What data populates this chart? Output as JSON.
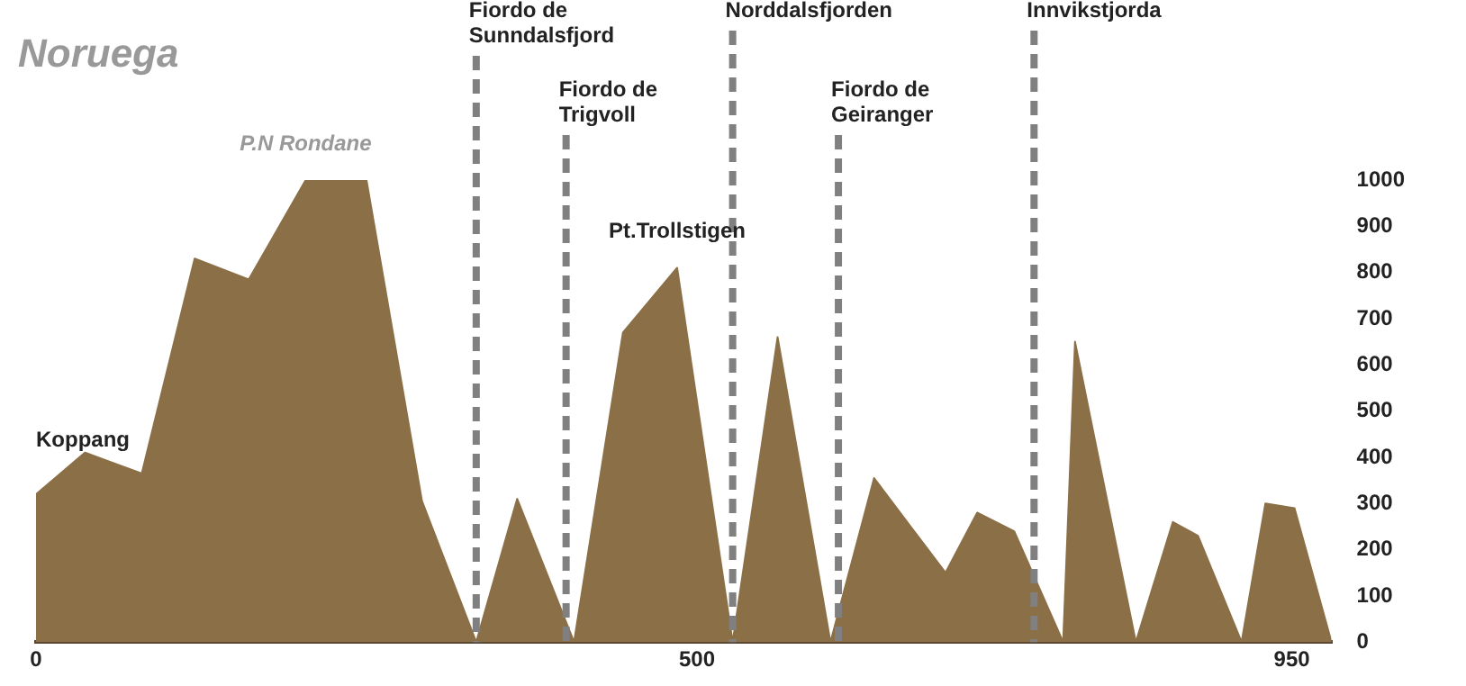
{
  "chart_data": {
    "type": "area",
    "title": "Noruega",
    "color": "#8b6f47",
    "x": [
      0,
      37,
      80,
      120,
      161,
      204,
      250,
      292,
      333,
      364,
      407,
      444,
      485,
      527,
      561,
      601,
      634,
      688,
      712,
      740,
      777,
      786,
      832,
      860,
      879,
      912,
      930,
      952,
      980
    ],
    "values": [
      320,
      410,
      365,
      830,
      785,
      1000,
      1000,
      305,
      0,
      310,
      0,
      670,
      810,
      0,
      660,
      0,
      355,
      150,
      280,
      240,
      0,
      650,
      0,
      260,
      230,
      0,
      300,
      290,
      0
    ],
    "xlim": [
      0,
      980
    ],
    "xticks": [
      0,
      500,
      950
    ],
    "ylim": [
      0,
      1000
    ],
    "yticks": [
      0,
      100,
      200,
      300,
      400,
      500,
      600,
      700,
      800,
      900,
      1000
    ],
    "grid": false,
    "legend": false,
    "ref_lines": [
      {
        "axis": "x",
        "value": 333,
        "label": "Fiordo de Sunndalsfjord",
        "color": "#808080",
        "line_style": "dashed"
      },
      {
        "axis": "x",
        "value": 401,
        "label": "Fiordo de Trigvoll",
        "color": "#808080",
        "line_style": "dashed"
      },
      {
        "axis": "x",
        "value": 527,
        "label": "Norddalsfjorden",
        "color": "#808080",
        "line_style": "dashed"
      },
      {
        "axis": "x",
        "value": 607,
        "label": "Fiordo de Geiranger",
        "color": "#808080",
        "line_style": "dashed"
      },
      {
        "axis": "x",
        "value": 755,
        "label": "Innvikstjorda",
        "color": "#808080",
        "line_style": "dashed"
      }
    ],
    "annotations": [
      {
        "text": "Koppang",
        "x": 0,
        "y": 320
      },
      {
        "text": "P.N Rondane",
        "x": 204,
        "y": 1000
      },
      {
        "text": "Pt.Trollstigen",
        "x": 485,
        "y": 810
      }
    ]
  }
}
